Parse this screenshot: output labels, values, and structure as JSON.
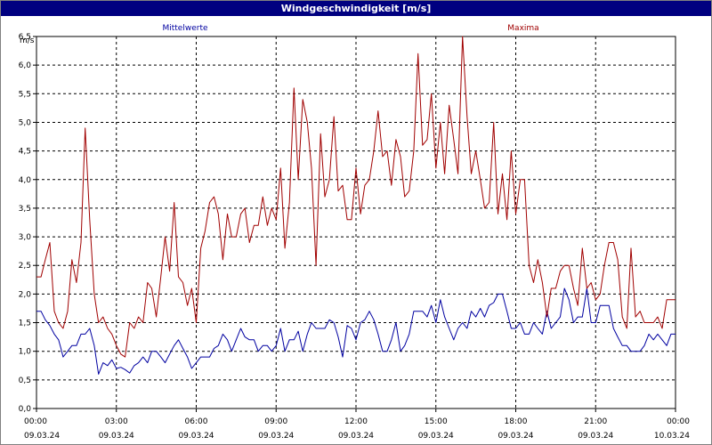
{
  "chart_data": {
    "type": "line",
    "title": "Windgeschwindigkeit [m/s]",
    "ylabel": "m/s",
    "xlabel": "",
    "ylim": [
      0,
      6.5
    ],
    "yticks": [
      "0,0",
      "0,5",
      "1,0",
      "1,5",
      "2,0",
      "2,5",
      "3,0",
      "3,5",
      "4,0",
      "4,5",
      "5,0",
      "5,5",
      "6,0",
      "6,5"
    ],
    "xticks": [
      {
        "time": "00:00",
        "date": "09.03.24"
      },
      {
        "time": "03:00",
        "date": "09.03.24"
      },
      {
        "time": "06:00",
        "date": "09.03.24"
      },
      {
        "time": "09:00",
        "date": "09.03.24"
      },
      {
        "time": "12:00",
        "date": "09.03.24"
      },
      {
        "time": "15:00",
        "date": "09.03.24"
      },
      {
        "time": "18:00",
        "date": "09.03.24"
      },
      {
        "time": "21:00",
        "date": "09.03.24"
      },
      {
        "time": "00:00",
        "date": "10.03.24"
      }
    ],
    "xlim_hours": [
      0,
      24
    ],
    "grid": true,
    "series": [
      {
        "name": "Mittelwerte",
        "color": "#0000a0",
        "points": [
          [
            0.0,
            1.7
          ],
          [
            0.17,
            1.7
          ],
          [
            0.33,
            1.55
          ],
          [
            0.5,
            1.45
          ],
          [
            0.67,
            1.3
          ],
          [
            0.83,
            1.2
          ],
          [
            0.92,
            1.05
          ],
          [
            1.0,
            0.9
          ],
          [
            1.17,
            1.0
          ],
          [
            1.33,
            1.1
          ],
          [
            1.5,
            1.1
          ],
          [
            1.67,
            1.3
          ],
          [
            1.83,
            1.3
          ],
          [
            2.0,
            1.4
          ],
          [
            2.17,
            1.1
          ],
          [
            2.33,
            0.6
          ],
          [
            2.5,
            0.8
          ],
          [
            2.67,
            0.75
          ],
          [
            2.83,
            0.85
          ],
          [
            3.0,
            0.7
          ],
          [
            3.17,
            0.72
          ],
          [
            3.33,
            0.68
          ],
          [
            3.5,
            0.62
          ],
          [
            3.67,
            0.75
          ],
          [
            3.83,
            0.8
          ],
          [
            4.0,
            0.9
          ],
          [
            4.17,
            0.8
          ],
          [
            4.33,
            1.0
          ],
          [
            4.5,
            1.0
          ],
          [
            4.67,
            0.9
          ],
          [
            4.83,
            0.8
          ],
          [
            5.0,
            0.95
          ],
          [
            5.17,
            1.1
          ],
          [
            5.33,
            1.2
          ],
          [
            5.5,
            1.05
          ],
          [
            5.67,
            0.9
          ],
          [
            5.83,
            0.7
          ],
          [
            6.0,
            0.8
          ],
          [
            6.17,
            0.9
          ],
          [
            6.33,
            0.9
          ],
          [
            6.5,
            0.9
          ],
          [
            6.67,
            1.05
          ],
          [
            6.83,
            1.1
          ],
          [
            7.0,
            1.3
          ],
          [
            7.17,
            1.2
          ],
          [
            7.33,
            1.0
          ],
          [
            7.5,
            1.2
          ],
          [
            7.67,
            1.4
          ],
          [
            7.83,
            1.25
          ],
          [
            8.0,
            1.2
          ],
          [
            8.17,
            1.2
          ],
          [
            8.33,
            1.0
          ],
          [
            8.5,
            1.1
          ],
          [
            8.67,
            1.1
          ],
          [
            8.83,
            1.0
          ],
          [
            9.0,
            1.1
          ],
          [
            9.17,
            1.4
          ],
          [
            9.33,
            1.0
          ],
          [
            9.5,
            1.2
          ],
          [
            9.67,
            1.2
          ],
          [
            9.83,
            1.35
          ],
          [
            10.0,
            1.0
          ],
          [
            10.17,
            1.3
          ],
          [
            10.33,
            1.5
          ],
          [
            10.5,
            1.4
          ],
          [
            10.67,
            1.4
          ],
          [
            10.83,
            1.4
          ],
          [
            11.0,
            1.55
          ],
          [
            11.17,
            1.5
          ],
          [
            11.33,
            1.25
          ],
          [
            11.5,
            0.9
          ],
          [
            11.67,
            1.45
          ],
          [
            11.83,
            1.4
          ],
          [
            12.0,
            1.2
          ],
          [
            12.17,
            1.5
          ],
          [
            12.33,
            1.55
          ],
          [
            12.5,
            1.7
          ],
          [
            12.67,
            1.55
          ],
          [
            12.83,
            1.3
          ],
          [
            13.0,
            1.0
          ],
          [
            13.17,
            1.0
          ],
          [
            13.33,
            1.2
          ],
          [
            13.5,
            1.5
          ],
          [
            13.67,
            1.0
          ],
          [
            13.83,
            1.1
          ],
          [
            14.0,
            1.3
          ],
          [
            14.17,
            1.7
          ],
          [
            14.33,
            1.7
          ],
          [
            14.5,
            1.7
          ],
          [
            14.67,
            1.6
          ],
          [
            14.83,
            1.8
          ],
          [
            15.0,
            1.5
          ],
          [
            15.17,
            1.9
          ],
          [
            15.33,
            1.6
          ],
          [
            15.5,
            1.4
          ],
          [
            15.67,
            1.2
          ],
          [
            15.83,
            1.4
          ],
          [
            16.0,
            1.5
          ],
          [
            16.17,
            1.4
          ],
          [
            16.33,
            1.7
          ],
          [
            16.5,
            1.6
          ],
          [
            16.67,
            1.75
          ],
          [
            16.83,
            1.6
          ],
          [
            17.0,
            1.8
          ],
          [
            17.17,
            1.85
          ],
          [
            17.33,
            2.0
          ],
          [
            17.5,
            2.0
          ],
          [
            17.67,
            1.7
          ],
          [
            17.83,
            1.4
          ],
          [
            18.0,
            1.4
          ],
          [
            18.17,
            1.5
          ],
          [
            18.33,
            1.3
          ],
          [
            18.5,
            1.3
          ],
          [
            18.67,
            1.5
          ],
          [
            18.83,
            1.4
          ],
          [
            19.0,
            1.3
          ],
          [
            19.17,
            1.7
          ],
          [
            19.33,
            1.4
          ],
          [
            19.5,
            1.5
          ],
          [
            19.67,
            1.6
          ],
          [
            19.83,
            2.1
          ],
          [
            20.0,
            1.9
          ],
          [
            20.17,
            1.5
          ],
          [
            20.33,
            1.6
          ],
          [
            20.5,
            1.6
          ],
          [
            20.67,
            2.1
          ],
          [
            20.83,
            1.5
          ],
          [
            21.0,
            1.5
          ],
          [
            21.17,
            1.8
          ],
          [
            21.33,
            1.8
          ],
          [
            21.5,
            1.8
          ],
          [
            21.67,
            1.4
          ],
          [
            21.83,
            1.25
          ],
          [
            22.0,
            1.1
          ],
          [
            22.17,
            1.1
          ],
          [
            22.33,
            1.0
          ],
          [
            22.5,
            1.0
          ],
          [
            22.67,
            1.0
          ],
          [
            22.83,
            1.1
          ],
          [
            23.0,
            1.3
          ],
          [
            23.17,
            1.2
          ],
          [
            23.33,
            1.3
          ],
          [
            23.5,
            1.2
          ],
          [
            23.67,
            1.1
          ],
          [
            23.83,
            1.3
          ],
          [
            24.0,
            1.3
          ]
        ]
      },
      {
        "name": "Maxima",
        "color": "#a00000",
        "points": [
          [
            0.0,
            2.3
          ],
          [
            0.17,
            2.3
          ],
          [
            0.33,
            2.6
          ],
          [
            0.5,
            2.9
          ],
          [
            0.67,
            1.7
          ],
          [
            0.83,
            1.5
          ],
          [
            1.0,
            1.4
          ],
          [
            1.17,
            1.7
          ],
          [
            1.33,
            2.6
          ],
          [
            1.5,
            2.2
          ],
          [
            1.67,
            2.9
          ],
          [
            1.83,
            4.9
          ],
          [
            2.0,
            3.3
          ],
          [
            2.17,
            2.0
          ],
          [
            2.33,
            1.5
          ],
          [
            2.5,
            1.6
          ],
          [
            2.67,
            1.4
          ],
          [
            2.83,
            1.3
          ],
          [
            3.0,
            1.1
          ],
          [
            3.17,
            0.95
          ],
          [
            3.33,
            0.9
          ],
          [
            3.5,
            1.5
          ],
          [
            3.67,
            1.4
          ],
          [
            3.83,
            1.6
          ],
          [
            4.0,
            1.5
          ],
          [
            4.17,
            2.2
          ],
          [
            4.33,
            2.1
          ],
          [
            4.5,
            1.6
          ],
          [
            4.67,
            2.3
          ],
          [
            4.83,
            3.0
          ],
          [
            5.0,
            2.4
          ],
          [
            5.17,
            3.6
          ],
          [
            5.33,
            2.3
          ],
          [
            5.5,
            2.2
          ],
          [
            5.67,
            1.8
          ],
          [
            5.83,
            2.1
          ],
          [
            6.0,
            1.5
          ],
          [
            6.17,
            2.8
          ],
          [
            6.33,
            3.1
          ],
          [
            6.5,
            3.6
          ],
          [
            6.67,
            3.7
          ],
          [
            6.83,
            3.4
          ],
          [
            7.0,
            2.6
          ],
          [
            7.17,
            3.4
          ],
          [
            7.33,
            3.0
          ],
          [
            7.5,
            3.0
          ],
          [
            7.67,
            3.4
          ],
          [
            7.83,
            3.5
          ],
          [
            8.0,
            2.9
          ],
          [
            8.17,
            3.2
          ],
          [
            8.33,
            3.2
          ],
          [
            8.5,
            3.7
          ],
          [
            8.67,
            3.2
          ],
          [
            8.83,
            3.5
          ],
          [
            9.0,
            3.3
          ],
          [
            9.17,
            4.2
          ],
          [
            9.33,
            2.8
          ],
          [
            9.5,
            3.6
          ],
          [
            9.67,
            5.6
          ],
          [
            9.83,
            4.0
          ],
          [
            10.0,
            5.4
          ],
          [
            10.17,
            5.0
          ],
          [
            10.33,
            4.2
          ],
          [
            10.5,
            2.5
          ],
          [
            10.67,
            4.8
          ],
          [
            10.83,
            3.7
          ],
          [
            11.0,
            4.0
          ],
          [
            11.17,
            5.1
          ],
          [
            11.33,
            3.8
          ],
          [
            11.5,
            3.9
          ],
          [
            11.67,
            3.3
          ],
          [
            11.83,
            3.3
          ],
          [
            12.0,
            4.2
          ],
          [
            12.17,
            3.4
          ],
          [
            12.33,
            3.9
          ],
          [
            12.5,
            4.0
          ],
          [
            12.67,
            4.5
          ],
          [
            12.83,
            5.2
          ],
          [
            13.0,
            4.4
          ],
          [
            13.17,
            4.5
          ],
          [
            13.33,
            3.9
          ],
          [
            13.5,
            4.7
          ],
          [
            13.67,
            4.4
          ],
          [
            13.83,
            3.7
          ],
          [
            14.0,
            3.8
          ],
          [
            14.17,
            4.5
          ],
          [
            14.33,
            6.2
          ],
          [
            14.5,
            4.6
          ],
          [
            14.67,
            4.7
          ],
          [
            14.83,
            5.5
          ],
          [
            15.0,
            4.2
          ],
          [
            15.17,
            5.0
          ],
          [
            15.33,
            4.1
          ],
          [
            15.5,
            5.3
          ],
          [
            15.67,
            4.7
          ],
          [
            15.83,
            4.1
          ],
          [
            16.0,
            6.5
          ],
          [
            16.17,
            5.1
          ],
          [
            16.33,
            4.1
          ],
          [
            16.5,
            4.5
          ],
          [
            16.67,
            4.0
          ],
          [
            16.83,
            3.5
          ],
          [
            17.0,
            3.6
          ],
          [
            17.17,
            5.0
          ],
          [
            17.33,
            3.4
          ],
          [
            17.5,
            4.1
          ],
          [
            17.67,
            3.3
          ],
          [
            17.83,
            4.5
          ],
          [
            18.0,
            3.4
          ],
          [
            18.17,
            4.0
          ],
          [
            18.33,
            4.0
          ],
          [
            18.5,
            2.5
          ],
          [
            18.67,
            2.2
          ],
          [
            18.83,
            2.6
          ],
          [
            19.0,
            2.2
          ],
          [
            19.17,
            1.6
          ],
          [
            19.33,
            2.1
          ],
          [
            19.5,
            2.1
          ],
          [
            19.67,
            2.4
          ],
          [
            19.83,
            2.5
          ],
          [
            20.0,
            2.5
          ],
          [
            20.17,
            2.1
          ],
          [
            20.33,
            1.8
          ],
          [
            20.5,
            2.8
          ],
          [
            20.67,
            2.1
          ],
          [
            20.83,
            2.2
          ],
          [
            21.0,
            1.9
          ],
          [
            21.17,
            2.0
          ],
          [
            21.33,
            2.5
          ],
          [
            21.5,
            2.9
          ],
          [
            21.67,
            2.9
          ],
          [
            21.83,
            2.6
          ],
          [
            22.0,
            1.6
          ],
          [
            22.17,
            1.4
          ],
          [
            22.33,
            2.8
          ],
          [
            22.5,
            1.6
          ],
          [
            22.67,
            1.7
          ],
          [
            22.83,
            1.5
          ],
          [
            23.0,
            1.5
          ],
          [
            23.17,
            1.5
          ],
          [
            23.33,
            1.6
          ],
          [
            23.5,
            1.4
          ],
          [
            23.67,
            1.9
          ],
          [
            24.0,
            1.9
          ]
        ]
      }
    ]
  }
}
